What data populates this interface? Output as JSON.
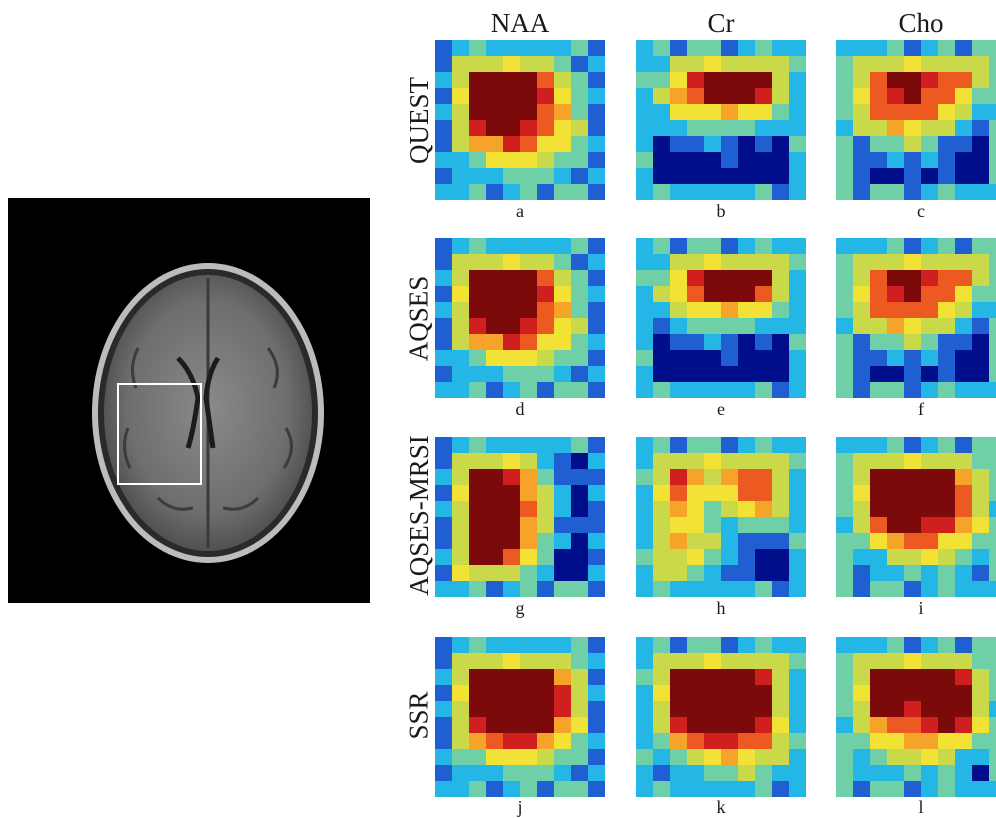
{
  "columns": [
    "NAA",
    "Cr",
    "Cho"
  ],
  "rows": [
    {
      "name": "QUEST",
      "panels": [
        "a",
        "b",
        "c"
      ]
    },
    {
      "name": "AQSES",
      "panels": [
        "d",
        "e",
        "f"
      ]
    },
    {
      "name": "AQSES-MRSI",
      "panels": [
        "g",
        "h",
        "i"
      ]
    },
    {
      "name": "SSR",
      "panels": [
        "j",
        "k",
        "l"
      ]
    }
  ],
  "colormap": [
    "#000e8c",
    "#1f5fd1",
    "#24b7e6",
    "#6fd0a8",
    "#c9d94a",
    "#f3e236",
    "#f6a429",
    "#ec5a22",
    "#cf1f1f",
    "#7d0a0a"
  ]
}
